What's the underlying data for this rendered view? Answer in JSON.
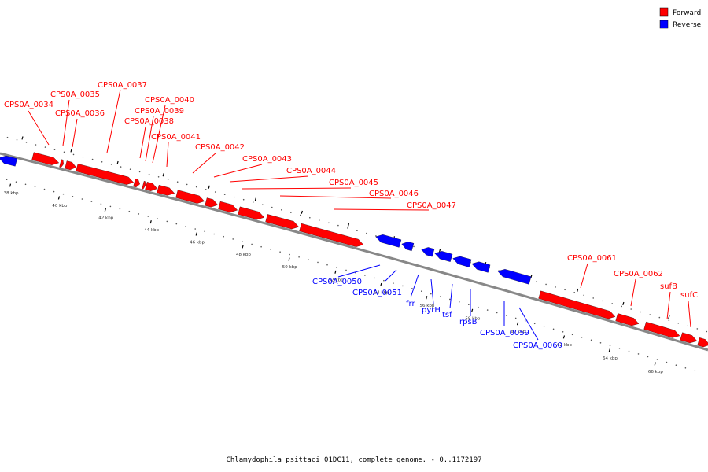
{
  "legend": {
    "forward": {
      "label": "Forward",
      "color": "#ff0000"
    },
    "reverse": {
      "label": "Reverse",
      "color": "#0000ff"
    }
  },
  "caption": "Chlamydophila psittaci 01DC11, complete genome. - 0..1172197",
  "backbone_color": "#888888",
  "ticks": [
    "38 kbp",
    "40 kbp",
    "42 kbp",
    "44 kbp",
    "46 kbp",
    "48 kbp",
    "50 kbp",
    "52 kbp",
    "54 kbp",
    "56 kbp",
    "58 kbp",
    "60 kbp",
    "62 kbp",
    "64 kbp",
    "66 kbp"
  ],
  "genes": {
    "forward": [
      "CPS0A_0034",
      "CPS0A_0035",
      "CPS0A_0036",
      "CPS0A_0037",
      "CPS0A_0038",
      "CPS0A_0039",
      "CPS0A_0040",
      "CPS0A_0041",
      "CPS0A_0042",
      "CPS0A_0043",
      "CPS0A_0044",
      "CPS0A_0045",
      "CPS0A_0046",
      "CPS0A_0047",
      "CPS0A_0061",
      "CPS0A_0062",
      "sufB",
      "sufC"
    ],
    "reverse": [
      "CPS0A_0050",
      "CPS0A_0051",
      "frr",
      "pyrH",
      "tsf",
      "rpsB",
      "CPS0A_0059",
      "CPS0A_0060"
    ]
  }
}
